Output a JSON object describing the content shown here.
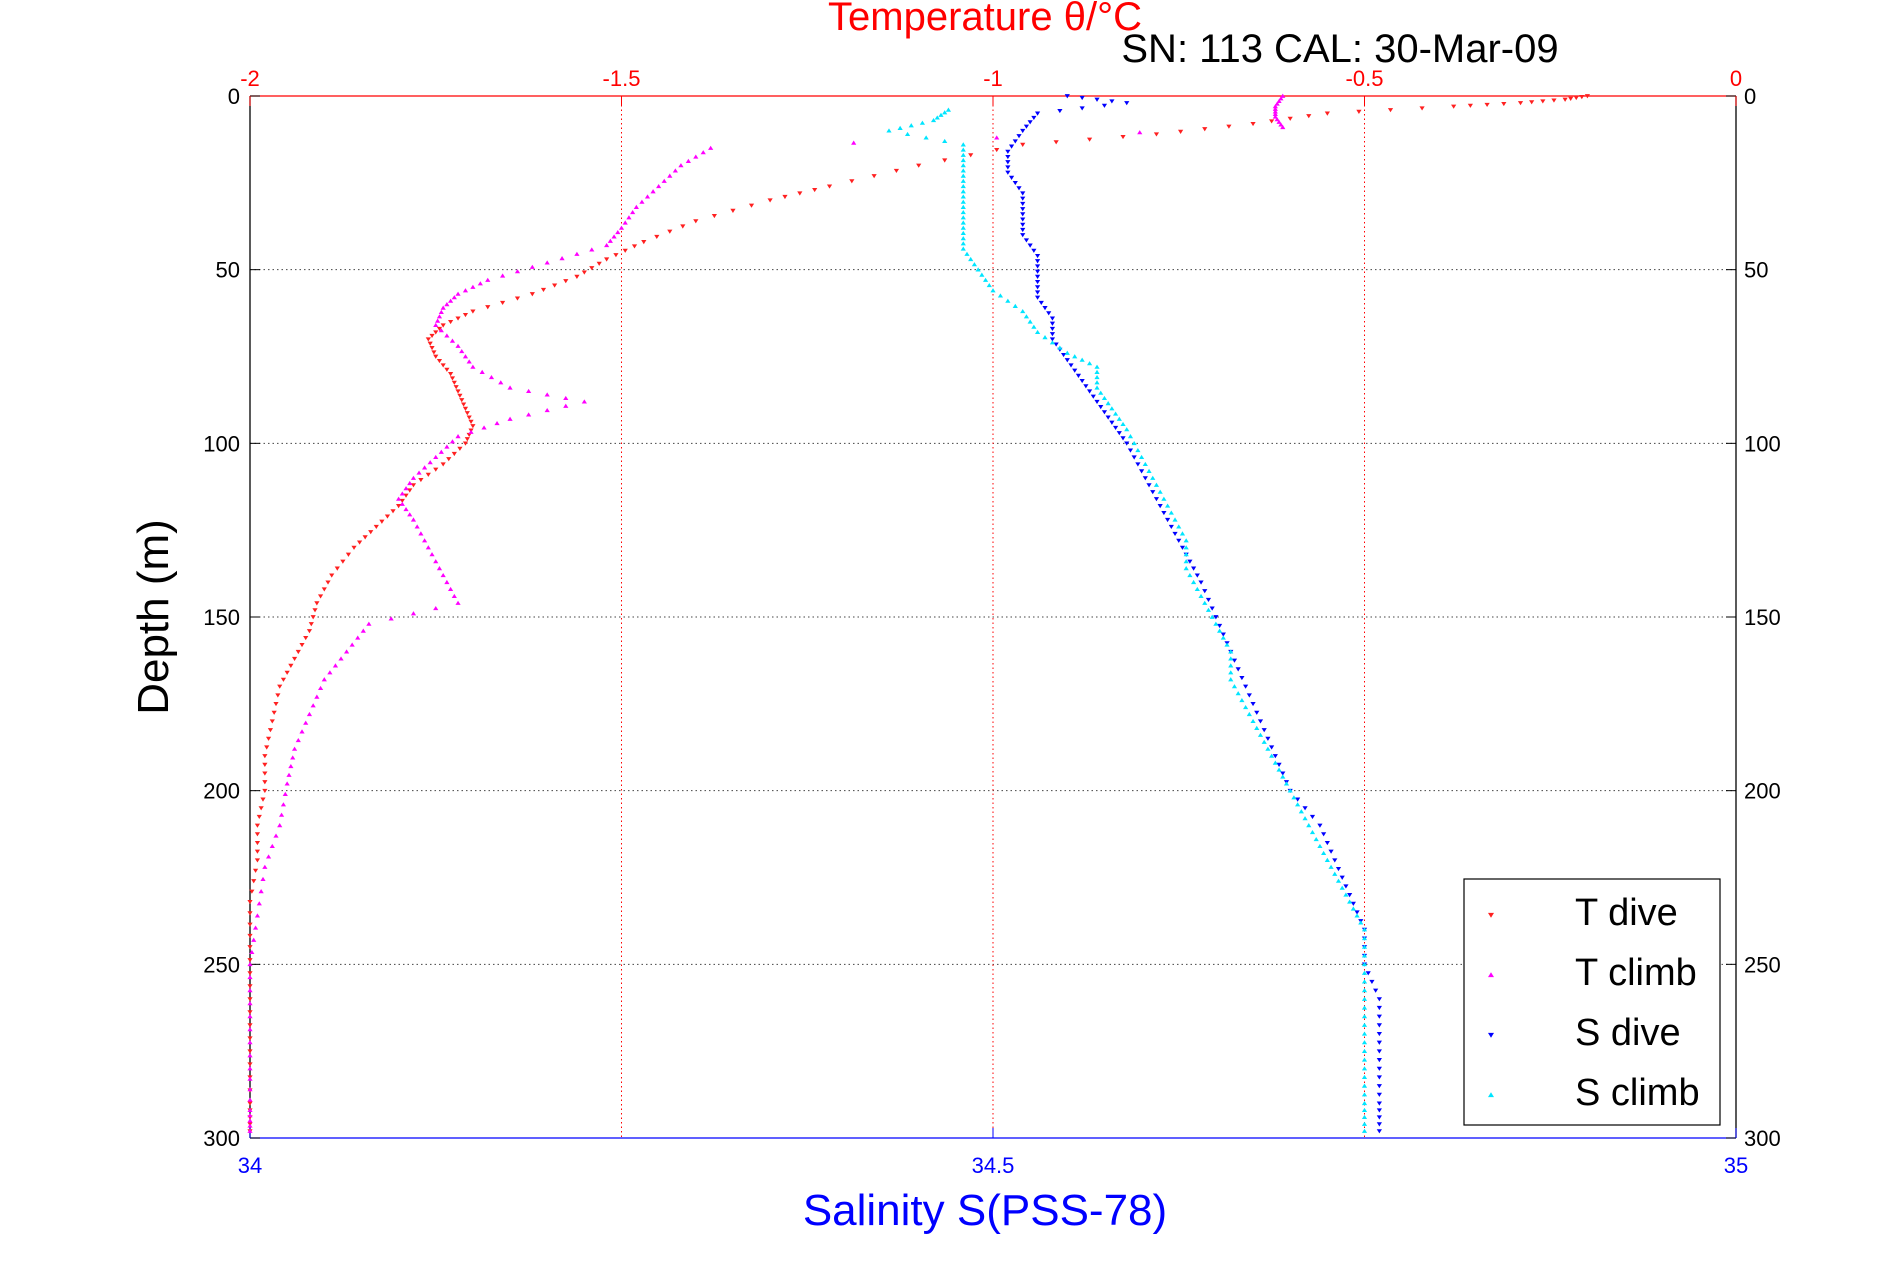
{
  "chart_data": {
    "type": "scatter",
    "title": "Temperature θ/°C",
    "subtitle": "SN: 113  CAL: 30-Mar-09",
    "ylabel": "Depth (m)",
    "xlabel_bottom": "Salinity S(PSS-78)",
    "ylim": [
      0,
      300
    ],
    "y_reversed": true,
    "yticks": [
      "0",
      "50",
      "100",
      "150",
      "200",
      "250",
      "300"
    ],
    "xlim_top": [
      -2,
      0
    ],
    "xticks_top": [
      "-2",
      "-1.5",
      "-1",
      "-0.5",
      "0"
    ],
    "xlim_bottom": [
      34,
      35
    ],
    "xticks_bottom": [
      "34",
      "34.5",
      "35"
    ],
    "grid": true,
    "legend_position": "bottom-right",
    "colors": {
      "temperature_axis": "#ff0000",
      "salinity_axis": "#0000ff",
      "t_dive": "#ff2020",
      "t_climb": "#ff00ff",
      "s_dive": "#0000ff",
      "s_climb": "#00e5ff"
    },
    "series": [
      {
        "name": "T dive",
        "axis": "temperature",
        "marker": "triangle-down",
        "color": "#ff2020",
        "points": [
          [
            -0.2,
            0
          ],
          [
            -0.23,
            1
          ],
          [
            -0.29,
            2
          ],
          [
            -0.38,
            3
          ],
          [
            -0.55,
            5
          ],
          [
            -0.65,
            8
          ],
          [
            -0.78,
            11
          ],
          [
            -0.96,
            14
          ],
          [
            -1.1,
            20
          ],
          [
            -1.22,
            26
          ],
          [
            -1.3,
            30
          ],
          [
            -1.4,
            36
          ],
          [
            -1.47,
            42
          ],
          [
            -1.52,
            47
          ],
          [
            -1.56,
            52
          ],
          [
            -1.62,
            57
          ],
          [
            -1.7,
            62
          ],
          [
            -1.74,
            66
          ],
          [
            -1.76,
            70
          ],
          [
            -1.75,
            75
          ],
          [
            -1.73,
            80
          ],
          [
            -1.72,
            85
          ],
          [
            -1.71,
            90
          ],
          [
            -1.7,
            95
          ],
          [
            -1.71,
            100
          ],
          [
            -1.74,
            106
          ],
          [
            -1.78,
            112
          ],
          [
            -1.8,
            118
          ],
          [
            -1.83,
            124
          ],
          [
            -1.86,
            130
          ],
          [
            -1.89,
            138
          ],
          [
            -1.91,
            146
          ],
          [
            -1.92,
            154
          ],
          [
            -1.94,
            162
          ],
          [
            -1.96,
            170
          ],
          [
            -1.97,
            180
          ],
          [
            -1.98,
            190
          ],
          [
            -1.98,
            200
          ],
          [
            -1.99,
            210
          ],
          [
            -1.99,
            220
          ],
          [
            -2.0,
            232
          ],
          [
            -2.0,
            245
          ],
          [
            -2.0,
            260
          ],
          [
            -2.0,
            275
          ],
          [
            -2.0,
            290
          ],
          [
            -2.0,
            298
          ]
        ]
      },
      {
        "name": "T climb",
        "axis": "temperature",
        "marker": "triangle-up",
        "color": "#ff00ff",
        "points": [
          [
            -0.61,
            0
          ],
          [
            -0.62,
            3
          ],
          [
            -0.62,
            6
          ],
          [
            -0.61,
            9
          ],
          [
            -1.38,
            15
          ],
          [
            -1.42,
            20
          ],
          [
            -1.45,
            26
          ],
          [
            -1.48,
            32
          ],
          [
            -1.5,
            38
          ],
          [
            -1.52,
            43
          ],
          [
            -1.6,
            48
          ],
          [
            -1.68,
            53
          ],
          [
            -1.72,
            57
          ],
          [
            -1.74,
            61
          ],
          [
            -1.75,
            66
          ],
          [
            -1.72,
            72
          ],
          [
            -1.7,
            78
          ],
          [
            -1.65,
            84
          ],
          [
            -1.55,
            88
          ],
          [
            -1.65,
            93
          ],
          [
            -1.72,
            98
          ],
          [
            -1.75,
            104
          ],
          [
            -1.78,
            110
          ],
          [
            -1.8,
            116
          ],
          [
            -1.78,
            122
          ],
          [
            -1.76,
            130
          ],
          [
            -1.74,
            138
          ],
          [
            -1.72,
            146
          ],
          [
            -1.84,
            152
          ],
          [
            -1.87,
            160
          ],
          [
            -1.9,
            168
          ],
          [
            -1.92,
            178
          ],
          [
            -1.94,
            188
          ],
          [
            -1.95,
            198
          ],
          [
            -1.96,
            210
          ],
          [
            -1.98,
            222
          ],
          [
            -1.99,
            236
          ],
          [
            -2.0,
            250
          ],
          [
            -2.0,
            265
          ],
          [
            -2.0,
            280
          ],
          [
            -2.0,
            292
          ],
          [
            -2.0,
            298
          ]
        ]
      },
      {
        "name": "S dive",
        "axis": "salinity",
        "marker": "triangle-down",
        "color": "#0000ff",
        "points": [
          [
            34.55,
            0
          ],
          [
            34.59,
            2
          ],
          [
            34.53,
            5
          ],
          [
            34.52,
            10
          ],
          [
            34.51,
            16
          ],
          [
            34.51,
            22
          ],
          [
            34.52,
            28
          ],
          [
            34.52,
            34
          ],
          [
            34.52,
            40
          ],
          [
            34.53,
            46
          ],
          [
            34.53,
            52
          ],
          [
            34.53,
            58
          ],
          [
            34.54,
            64
          ],
          [
            34.54,
            70
          ],
          [
            34.55,
            76
          ],
          [
            34.56,
            82
          ],
          [
            34.57,
            88
          ],
          [
            34.58,
            94
          ],
          [
            34.59,
            100
          ],
          [
            34.6,
            108
          ],
          [
            34.61,
            116
          ],
          [
            34.62,
            124
          ],
          [
            34.63,
            132
          ],
          [
            34.64,
            140
          ],
          [
            34.65,
            150
          ],
          [
            34.66,
            160
          ],
          [
            34.67,
            170
          ],
          [
            34.68,
            180
          ],
          [
            34.69,
            190
          ],
          [
            34.7,
            200
          ],
          [
            34.72,
            210
          ],
          [
            34.73,
            220
          ],
          [
            34.74,
            230
          ],
          [
            34.75,
            240
          ],
          [
            34.75,
            250
          ],
          [
            34.76,
            260
          ],
          [
            34.76,
            270
          ],
          [
            34.76,
            280
          ],
          [
            34.76,
            290
          ],
          [
            34.76,
            298
          ]
        ]
      },
      {
        "name": "S climb",
        "axis": "salinity",
        "marker": "triangle-up",
        "color": "#00e5ff",
        "points": [
          [
            34.47,
            4
          ],
          [
            34.46,
            7
          ],
          [
            34.43,
            10
          ],
          [
            34.48,
            14
          ],
          [
            34.48,
            20
          ],
          [
            34.48,
            26
          ],
          [
            34.48,
            32
          ],
          [
            34.48,
            38
          ],
          [
            34.48,
            44
          ],
          [
            34.49,
            50
          ],
          [
            34.5,
            56
          ],
          [
            34.52,
            62
          ],
          [
            34.53,
            68
          ],
          [
            34.55,
            74
          ],
          [
            34.57,
            78
          ],
          [
            34.57,
            84
          ],
          [
            34.58,
            90
          ],
          [
            34.59,
            96
          ],
          [
            34.6,
            104
          ],
          [
            34.61,
            112
          ],
          [
            34.62,
            120
          ],
          [
            34.63,
            128
          ],
          [
            34.63,
            136
          ],
          [
            34.64,
            144
          ],
          [
            34.65,
            152
          ],
          [
            34.66,
            160
          ],
          [
            34.66,
            168
          ],
          [
            34.67,
            176
          ],
          [
            34.68,
            184
          ],
          [
            34.69,
            192
          ],
          [
            34.7,
            200
          ],
          [
            34.71,
            208
          ],
          [
            34.72,
            216
          ],
          [
            34.73,
            224
          ],
          [
            34.74,
            232
          ],
          [
            34.75,
            240
          ],
          [
            34.75,
            250
          ],
          [
            34.75,
            260
          ],
          [
            34.75,
            270
          ],
          [
            34.75,
            280
          ],
          [
            34.75,
            290
          ],
          [
            34.75,
            298
          ]
        ]
      }
    ]
  }
}
